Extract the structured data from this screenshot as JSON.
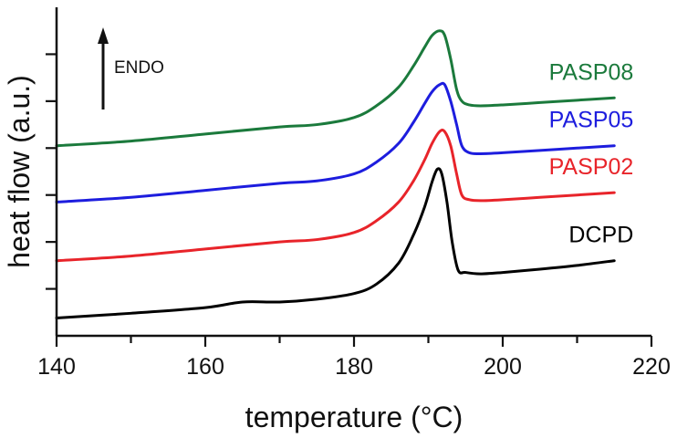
{
  "chart_data": {
    "type": "line",
    "title": "",
    "xlabel": "temperature (°C)",
    "ylabel": "heat flow (a.u.)",
    "xlim": [
      140,
      220
    ],
    "ylim": [
      0,
      7
    ],
    "x_ticks": [
      "140",
      "160",
      "180",
      "200",
      "220"
    ],
    "y_tick_labels_shown": false,
    "annotation": {
      "text": "ENDO",
      "arrow": "up"
    },
    "series": [
      {
        "name": "DCPD",
        "color": "#000000",
        "x": [
          140,
          150,
          160,
          165,
          170,
          175,
          180,
          183,
          186,
          188,
          189.5,
          190.5,
          191.2,
          191.8,
          192.5,
          193.2,
          194,
          195,
          197,
          200,
          205,
          210,
          215
        ],
        "y": [
          0.38,
          0.48,
          0.6,
          0.72,
          0.72,
          0.78,
          0.9,
          1.1,
          1.55,
          2.15,
          2.75,
          3.28,
          3.55,
          3.45,
          2.85,
          2.0,
          1.4,
          1.35,
          1.32,
          1.35,
          1.42,
          1.5,
          1.6
        ]
      },
      {
        "name": "PASP02",
        "color": "#e8242a",
        "x": [
          140,
          150,
          160,
          170,
          175,
          180,
          183,
          186,
          188,
          189.5,
          190.5,
          191.5,
          192.2,
          193,
          193.8,
          194.5,
          195.5,
          197,
          200,
          205,
          210,
          215
        ],
        "y": [
          1.6,
          1.7,
          1.85,
          2.0,
          2.05,
          2.2,
          2.45,
          2.85,
          3.3,
          3.75,
          4.1,
          4.35,
          4.35,
          4.05,
          3.45,
          3.0,
          2.9,
          2.88,
          2.9,
          2.95,
          3.0,
          3.05
        ]
      },
      {
        "name": "PASP05",
        "color": "#1d1dde",
        "x": [
          140,
          150,
          160,
          170,
          175,
          180,
          183,
          186,
          188,
          189.5,
          190.5,
          191.5,
          192.2,
          193,
          193.8,
          194.5,
          195.5,
          197,
          200,
          205,
          210,
          215
        ],
        "y": [
          2.85,
          2.95,
          3.1,
          3.25,
          3.3,
          3.45,
          3.7,
          4.1,
          4.55,
          4.95,
          5.2,
          5.35,
          5.35,
          5.0,
          4.5,
          4.05,
          3.9,
          3.88,
          3.9,
          3.95,
          4.0,
          4.05
        ]
      },
      {
        "name": "PASP08",
        "color": "#1b7a3c",
        "x": [
          140,
          150,
          160,
          170,
          175,
          180,
          183,
          186,
          188,
          189.5,
          190.5,
          191.5,
          192.2,
          193,
          193.8,
          194.5,
          195.5,
          197,
          200,
          205,
          210,
          215
        ],
        "y": [
          4.05,
          4.15,
          4.3,
          4.45,
          4.5,
          4.65,
          4.9,
          5.3,
          5.75,
          6.15,
          6.4,
          6.5,
          6.4,
          5.9,
          5.25,
          5.0,
          4.92,
          4.9,
          4.92,
          4.97,
          5.02,
          5.07
        ]
      }
    ]
  }
}
